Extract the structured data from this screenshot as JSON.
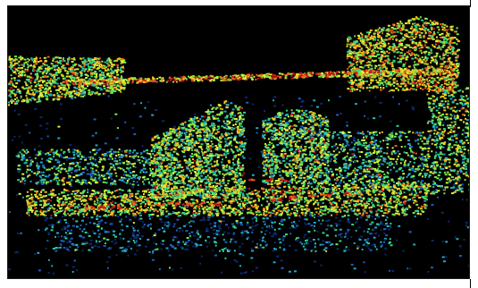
{
  "image": {
    "kind": "oct-tomography-scan",
    "colormap": "jet",
    "background_color": "#000000",
    "palette": [
      "#0b2a6e",
      "#1f5fbf",
      "#23a8c7",
      "#2fd38a",
      "#7be64a",
      "#d8f23a",
      "#f3c21f",
      "#e8601c",
      "#c7151a"
    ]
  }
}
